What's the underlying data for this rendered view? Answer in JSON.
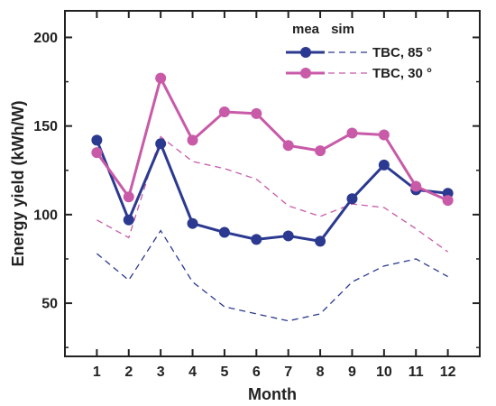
{
  "chart_data": {
    "type": "line",
    "title": "",
    "xlabel": "Month",
    "ylabel": "Energy yield (kWh/W)",
    "x": [
      "1",
      "2",
      "3",
      "4",
      "5",
      "6",
      "7",
      "8",
      "9",
      "10",
      "11",
      "12"
    ],
    "xlim": [
      0,
      13
    ],
    "ylim": [
      20,
      215
    ],
    "yticks": [
      "50",
      "100",
      "150",
      "200"
    ],
    "grid": false,
    "legend": {
      "placement": "top-right",
      "header_mea": "mea",
      "header_sim": "sim",
      "entries": [
        "TBC, 85 °",
        "TBC, 30 °"
      ]
    },
    "colors": {
      "tbc85": "#2b3990",
      "tbc30": "#c85aa8",
      "axis": "#222222"
    },
    "series": [
      {
        "name": "TBC, 85 °",
        "kind": "mea",
        "color_key": "tbc85",
        "values": [
          142,
          97,
          140,
          95,
          90,
          86,
          88,
          85,
          109,
          128,
          114,
          112
        ]
      },
      {
        "name": "TBC, 85 °",
        "kind": "sim",
        "color_key": "tbc85",
        "values": [
          78,
          63,
          91,
          62,
          48,
          44,
          40,
          44,
          62,
          71,
          75,
          65
        ]
      },
      {
        "name": "TBC, 30 °",
        "kind": "mea",
        "color_key": "tbc30",
        "values": [
          135,
          110,
          177,
          142,
          158,
          157,
          139,
          136,
          146,
          145,
          116,
          108
        ]
      },
      {
        "name": "TBC, 30 °",
        "kind": "sim",
        "color_key": "tbc30",
        "values": [
          97,
          87,
          144,
          130,
          126,
          120,
          105,
          99,
          106,
          104,
          92,
          79
        ]
      }
    ]
  }
}
